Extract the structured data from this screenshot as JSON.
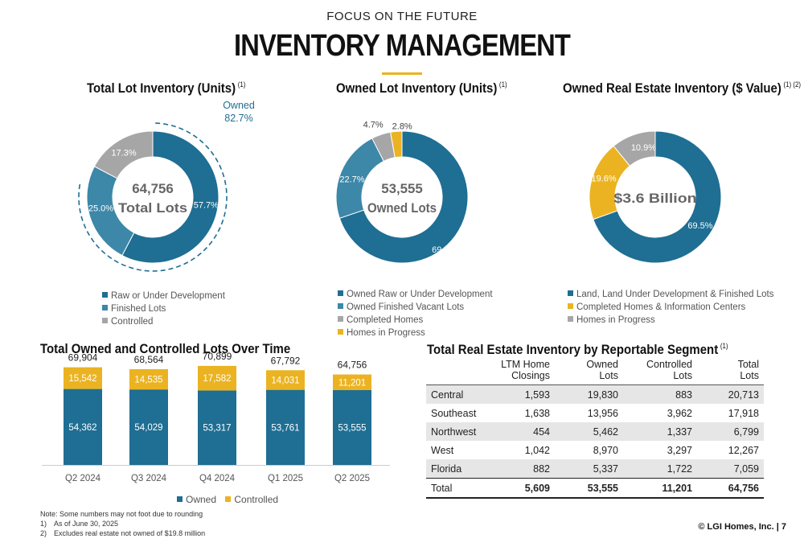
{
  "header": {
    "kicker": "FOCUS ON THE FUTURE",
    "title": "INVENTORY MANAGEMENT"
  },
  "colors": {
    "dark_blue": "#1f6e93",
    "mid_blue": "#3d87a8",
    "gray": "#a6a6a6",
    "gold": "#ebb321"
  },
  "donut1": {
    "title": "Total Lot Inventory (Units)",
    "sup": "(1)",
    "center": [
      "64,756",
      "Total Lots"
    ],
    "owned_label": [
      "Owned",
      "82.7%"
    ],
    "legend": [
      "Raw or Under Development",
      "Finished Lots",
      "Controlled"
    ]
  },
  "donut2": {
    "title": "Owned Lot Inventory (Units)",
    "sup": "(1)",
    "center": [
      "53,555",
      "Owned Lots"
    ],
    "legend": [
      "Owned Raw or Under Development",
      "Owned Finished Vacant Lots",
      "Completed Homes",
      "Homes in Progress"
    ]
  },
  "donut3": {
    "title": "Owned Real Estate Inventory ($ Value)",
    "sup": "(1) (2)",
    "center": [
      "$3.6 Billion"
    ],
    "legend": [
      "Land, Land Under Development & Finished Lots",
      "Completed Homes & Information Centers",
      "Homes in Progress"
    ]
  },
  "bar_section": {
    "title": "Total Owned and Controlled Lots Over Time",
    "legend": [
      "Owned",
      "Controlled"
    ]
  },
  "table": {
    "title": "Total Real Estate Inventory by Reportable Segment",
    "sup": "(1)",
    "headers": [
      [
        "LTM Home",
        "Closings"
      ],
      [
        "Owned",
        "Lots"
      ],
      [
        "Controlled",
        "Lots"
      ],
      [
        "Total",
        "Lots"
      ]
    ],
    "rows": [
      {
        "name": "Central",
        "values": [
          "1,593",
          "19,830",
          "883",
          "20,713"
        ]
      },
      {
        "name": "Southeast",
        "values": [
          "1,638",
          "13,956",
          "3,962",
          "17,918"
        ]
      },
      {
        "name": "Northwest",
        "values": [
          "454",
          "5,462",
          "1,337",
          "6,799"
        ]
      },
      {
        "name": "West",
        "values": [
          "1,042",
          "8,970",
          "3,297",
          "12,267"
        ]
      },
      {
        "name": "Florida",
        "values": [
          "882",
          "5,337",
          "1,722",
          "7,059"
        ]
      }
    ],
    "total": {
      "name": "Total",
      "values": [
        "5,609",
        "53,555",
        "11,201",
        "64,756"
      ]
    }
  },
  "notes": [
    "Note: Some numbers may not foot due to rounding",
    "1) As of June 30, 2025",
    "2) Excludes real estate not owned of $19.8 million"
  ],
  "footer": "© LGI Homes, Inc.  |  7",
  "chart_data": [
    {
      "type": "pie",
      "title": "Total Lot Inventory (Units)",
      "labels": [
        "Raw or Under Development",
        "Finished Lots",
        "Controlled"
      ],
      "values": [
        57.7,
        25.0,
        17.3
      ],
      "value_labels": [
        "57.7%",
        "25.0%",
        "17.3%"
      ]
    },
    {
      "type": "pie",
      "title": "Owned Lot Inventory (Units)",
      "labels": [
        "Owned Raw or Under Development",
        "Owned Finished Vacant Lots",
        "Completed Homes",
        "Homes in Progress"
      ],
      "values": [
        69.8,
        22.7,
        4.7,
        2.8
      ],
      "value_labels": [
        "69.8%",
        "22.7%",
        "4.7%",
        "2.8%"
      ]
    },
    {
      "type": "pie",
      "title": "Owned Real Estate Inventory ($ Value)",
      "labels": [
        "Land, Land Under Development & Finished Lots",
        "Completed Homes & Information Centers",
        "Homes in Progress"
      ],
      "values": [
        69.5,
        19.6,
        10.9
      ],
      "value_labels": [
        "69.5%",
        "19.6%",
        "10.9%"
      ]
    },
    {
      "type": "bar",
      "stacked": true,
      "title": "Total Owned and Controlled Lots Over Time",
      "categories": [
        "Q2 2024",
        "Q3 2024",
        "Q4 2024",
        "Q1 2025",
        "Q2 2025"
      ],
      "series": [
        {
          "name": "Owned",
          "values": [
            54362,
            54029,
            53317,
            53761,
            53555
          ],
          "labels": [
            "54,362",
            "54,029",
            "53,317",
            "53,761",
            "53,555"
          ]
        },
        {
          "name": "Controlled",
          "values": [
            15542,
            14535,
            17582,
            14031,
            11201
          ],
          "labels": [
            "15,542",
            "14,535",
            "17,582",
            "14,031",
            "11,201"
          ]
        }
      ],
      "totals": [
        69904,
        68564,
        70899,
        67792,
        64756
      ],
      "total_labels": [
        "69,904",
        "68,564",
        "70,899",
        "67,792",
        "64,756"
      ],
      "legend": "bottom"
    }
  ]
}
